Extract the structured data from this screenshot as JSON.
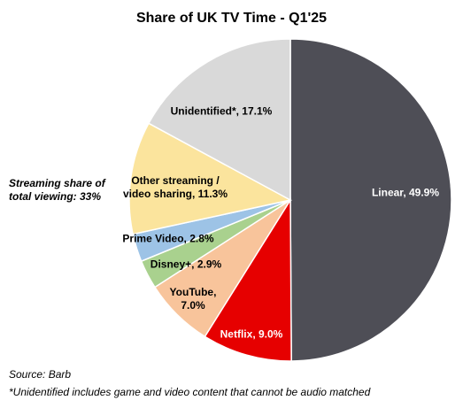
{
  "chart_data": {
    "type": "pie",
    "title": "Share of UK TV Time - Q1'25",
    "values": [
      49.9,
      9.0,
      7.0,
      2.9,
      2.8,
      11.3,
      17.1
    ],
    "value_labels": [
      "Linear, 49.9%",
      "Netflix, 9.0%",
      "YouTube, 7.0%",
      "Disney+, 2.9%",
      "Prime Video, 2.8%",
      "Other streaming / video sharing, 11.3%",
      "Unidentified*, 17.1%"
    ],
    "colors": [
      "#4e4e56",
      "#e60000",
      "#f8c49b",
      "#a9d18e",
      "#9dc3e6",
      "#fbe49d",
      "#d9d9d9"
    ],
    "annotation": "Streaming share of total viewing: 33%",
    "source": "Source: Barb",
    "footnote": "*Unidentified includes game and video content that cannot be audio matched"
  }
}
